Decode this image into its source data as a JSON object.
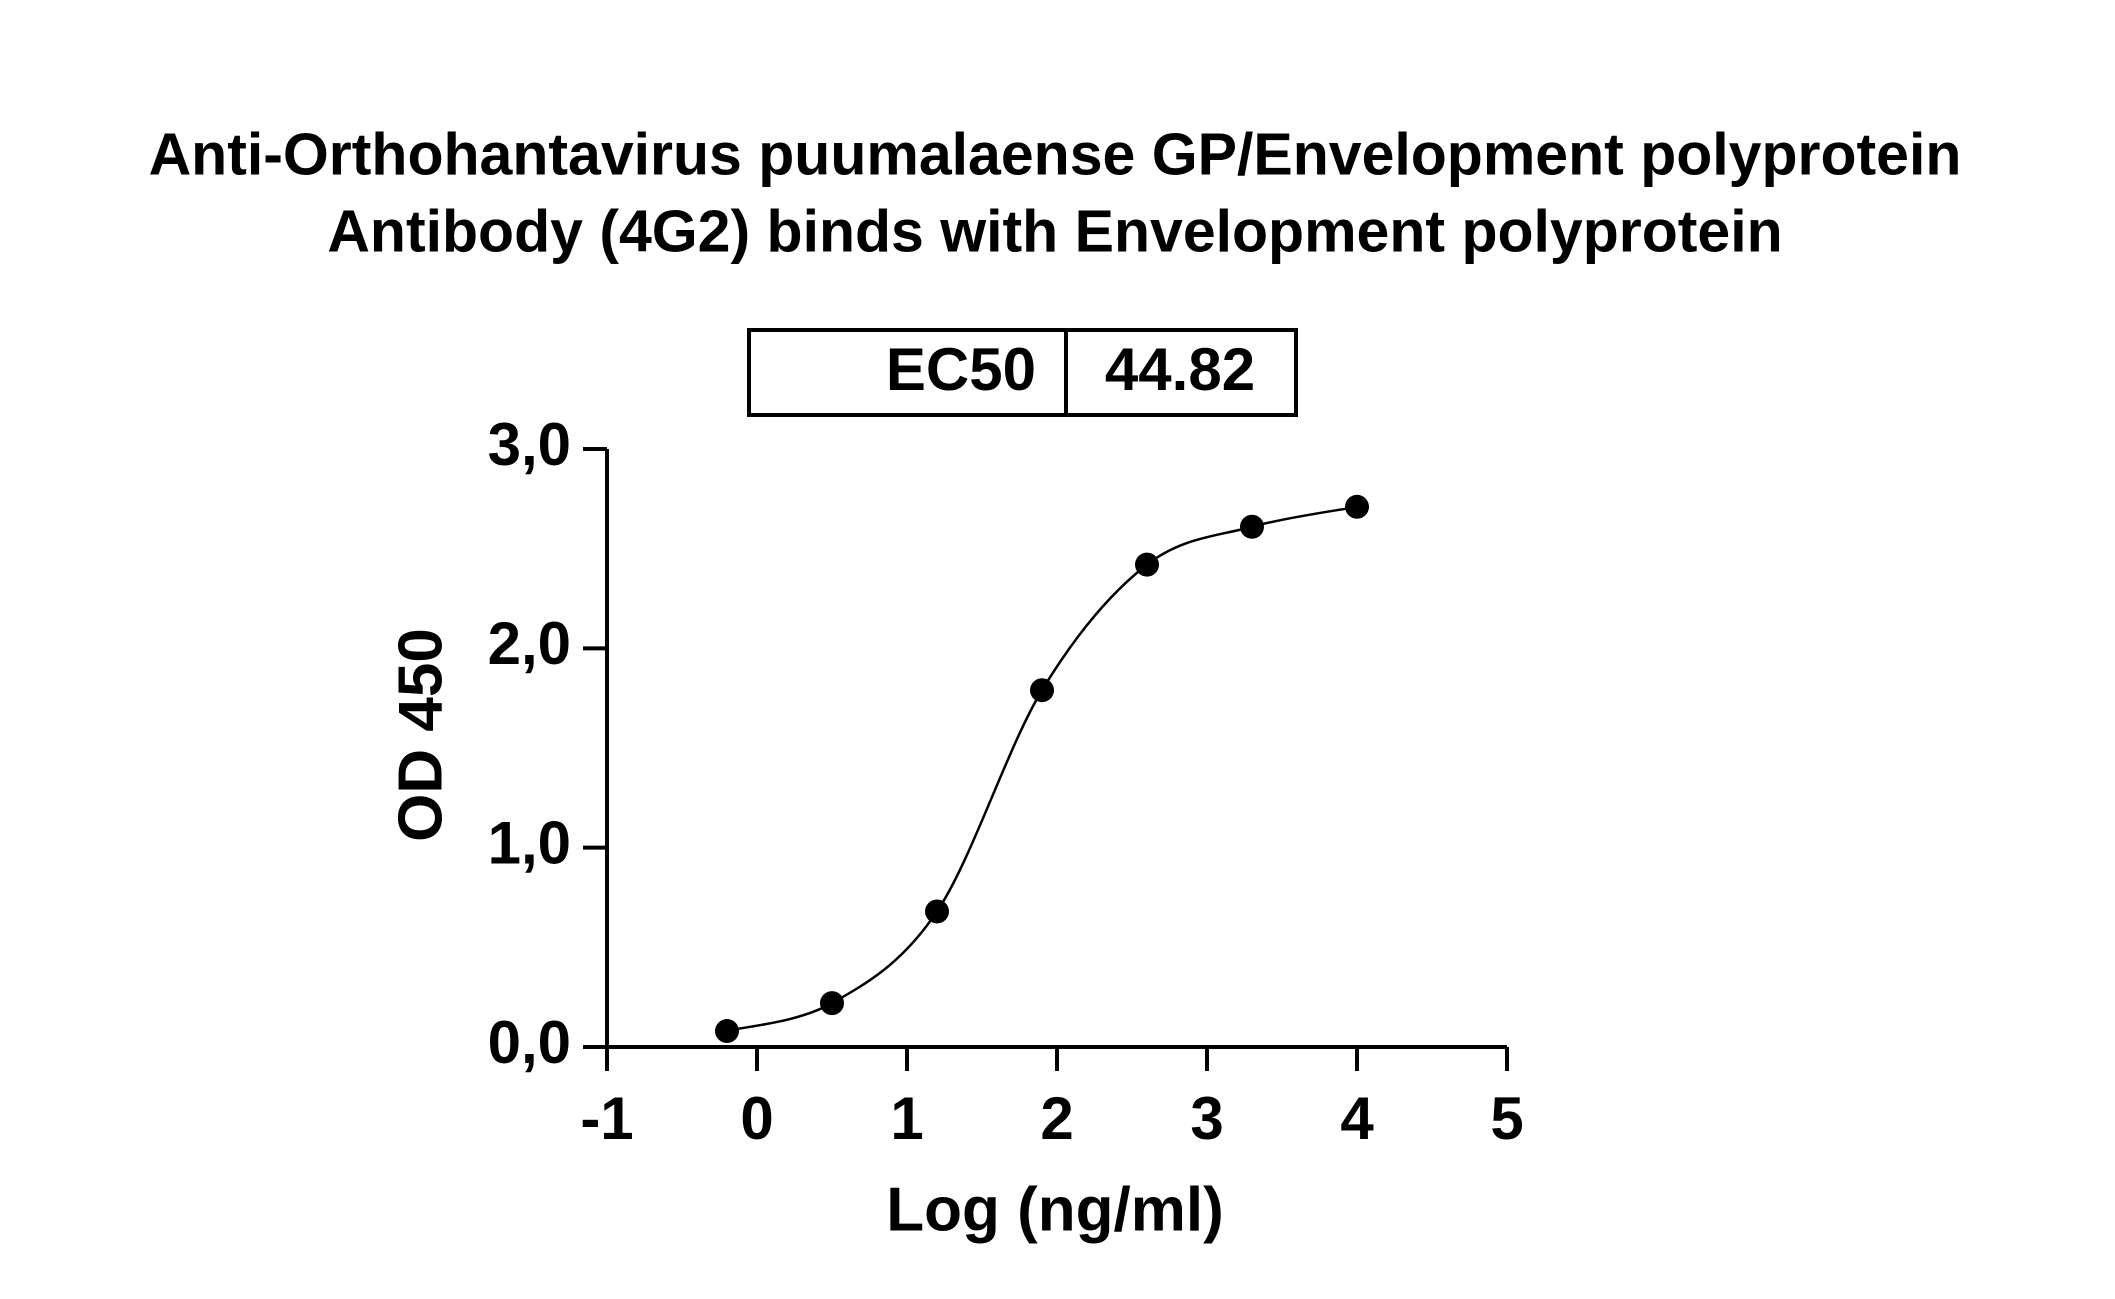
{
  "chart_data": {
    "type": "scatter",
    "title": [
      "Anti-Orthohantavirus puumalaense GP/Envelopment polyprotein",
      "Antibody (4G2) binds with Envelopment polyprotein"
    ],
    "x_label": "Log (ng/ml)",
    "y_label": "OD 450",
    "annotation": {
      "label": "EC50",
      "value": 44.82
    },
    "x": [
      -0.2,
      0.5,
      1.2,
      1.9,
      2.6,
      3.3,
      4.0
    ],
    "values": [
      0.08,
      0.22,
      0.68,
      1.79,
      2.42,
      2.61,
      2.71
    ],
    "color": "#000000",
    "xlim": [
      -1,
      5
    ],
    "xticks": [
      -1,
      0,
      1,
      2,
      3,
      4,
      5
    ],
    "ylim": [
      0,
      3
    ],
    "yticks": [
      {
        "value": 0,
        "label": "0,0"
      },
      {
        "value": 1,
        "label": "1,0"
      },
      {
        "value": 2,
        "label": "2,0"
      },
      {
        "value": 3,
        "label": "3,0"
      }
    ]
  }
}
